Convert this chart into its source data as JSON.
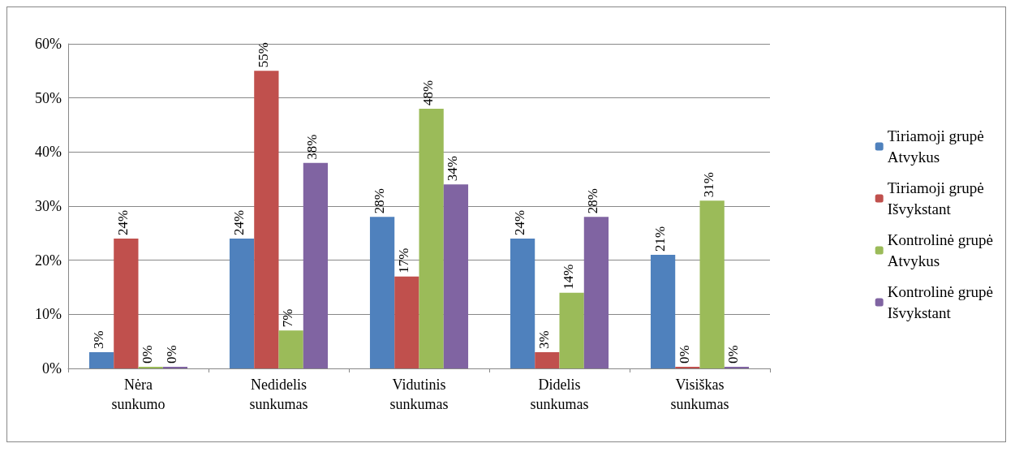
{
  "chart_data": {
    "type": "bar",
    "categories": [
      "Nėra sunkumo",
      "Nedidelis sunkumas",
      "Vidutinis sunkumas",
      "Didelis sunkumas",
      "Visiškas sunkumas"
    ],
    "series": [
      {
        "name": "Tiriamoji grupė Atvykus",
        "color": "#4f81bd",
        "values": [
          3,
          24,
          28,
          24,
          21
        ],
        "value_labels": [
          "3%",
          "24%",
          "28%",
          "24%",
          "21%"
        ]
      },
      {
        "name": "Tiriamoji grupė Išvykstant",
        "color": "#c0504d",
        "values": [
          24,
          55,
          17,
          3,
          0
        ],
        "value_labels": [
          "24%",
          "55%",
          "17%",
          "3%",
          "0%"
        ]
      },
      {
        "name": "Kontrolinė grupė Atvykus",
        "color": "#9bbb59",
        "values": [
          0,
          7,
          48,
          14,
          31
        ],
        "value_labels": [
          "0%",
          "7%",
          "48%",
          "14%",
          "31%"
        ]
      },
      {
        "name": "Kontrolinė grupė Išvykstant",
        "color": "#8064a2",
        "values": [
          0,
          38,
          34,
          28,
          0
        ],
        "value_labels": [
          "0%",
          "38%",
          "34%",
          "28%",
          "0%"
        ]
      }
    ],
    "ylim": [
      0,
      60
    ],
    "yticks": [
      {
        "value": 0,
        "label": "0%"
      },
      {
        "value": 10,
        "label": "10%"
      },
      {
        "value": 20,
        "label": "20%"
      },
      {
        "value": 30,
        "label": "30%"
      },
      {
        "value": 40,
        "label": "40%"
      },
      {
        "value": 50,
        "label": "50%"
      },
      {
        "value": 60,
        "label": "60%"
      }
    ],
    "grid": "y",
    "legend": "right"
  }
}
